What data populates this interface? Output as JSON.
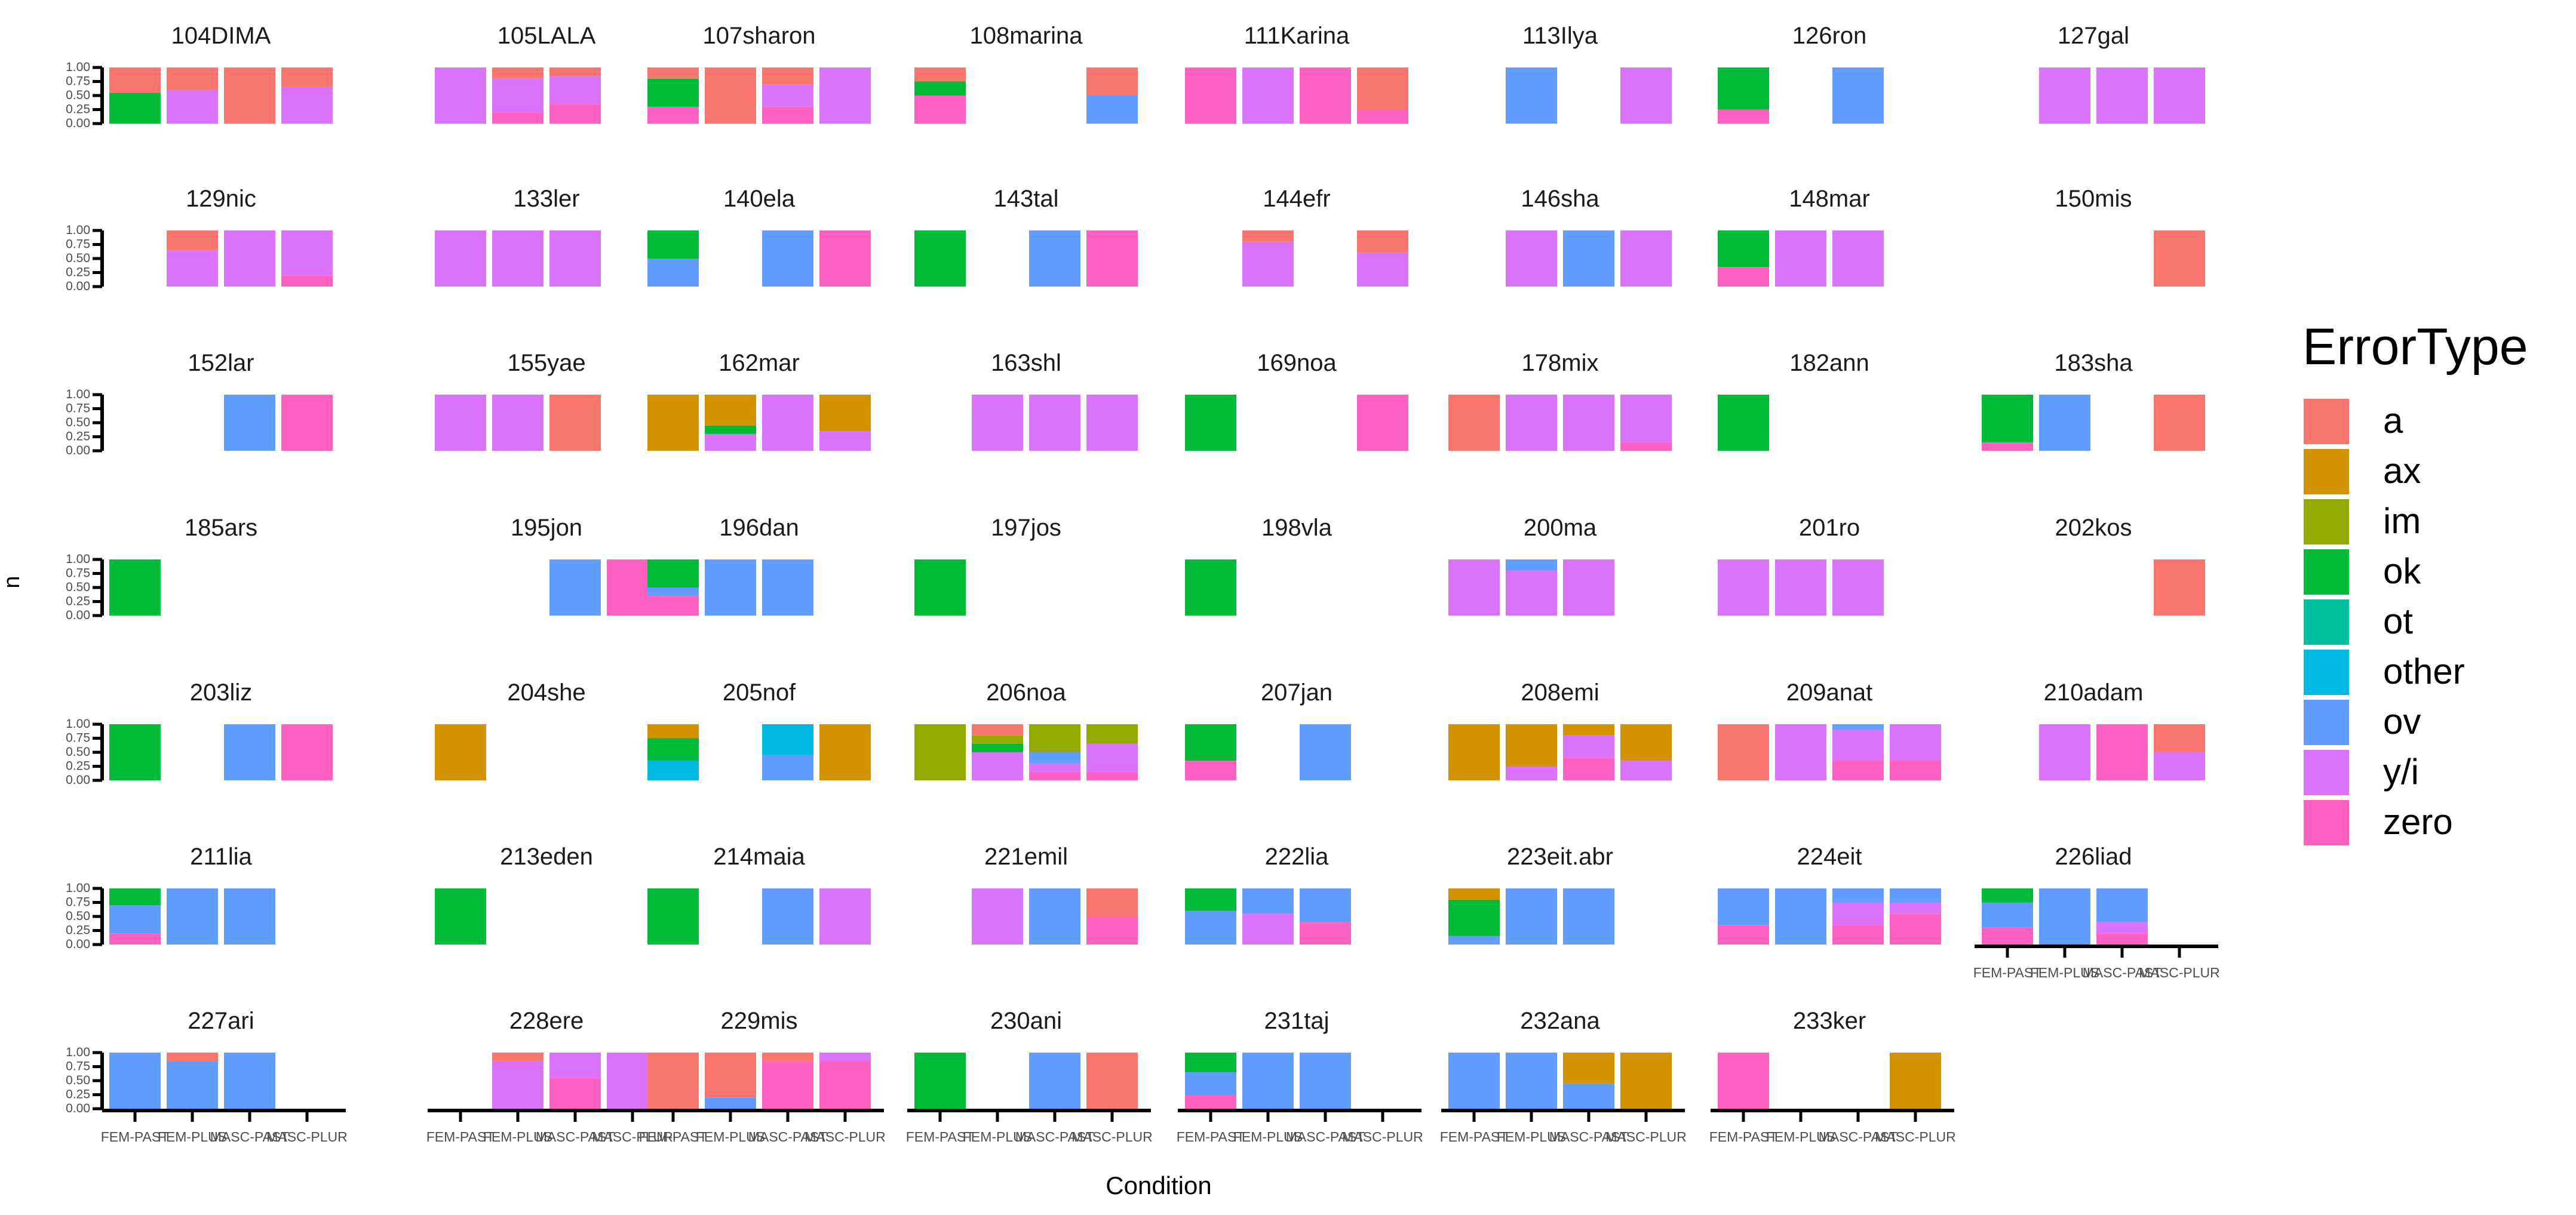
{
  "chart_data": {
    "type": "bar",
    "subtype": "faceted-stacked-proportion",
    "xlabel": "Condition",
    "ylabel": "n",
    "categories": [
      "FEM-PAST",
      "FEM-PLUS",
      "MASC-PAST",
      "MASC-PLUR"
    ],
    "x_tick_text": [
      "FEM-PAST",
      "FEM-PLUS",
      "MASC-PAST",
      "MASC-PLUR"
    ],
    "y_ticks": [
      "0.00",
      "0.25",
      "0.50",
      "0.75",
      "1.00"
    ],
    "ylim": [
      0,
      1
    ],
    "legend": {
      "title": "ErrorType",
      "entries": [
        "a",
        "ax",
        "im",
        "ok",
        "ot",
        "other",
        "ov",
        "y/i",
        "zero"
      ]
    },
    "colors": {
      "a": "#F8766D",
      "ax": "#D39200",
      "im": "#93AA00",
      "ok": "#00BA38",
      "ot": "#00C19F",
      "other": "#00B9E3",
      "ov": "#619CFF",
      "y/i": "#DB72FB",
      "zero": "#FF61C3"
    },
    "facets": [
      {
        "name": "104DIMA",
        "bars": [
          {
            "zero": 0,
            "ok": 0.55,
            "a": 0.45
          },
          {
            "y/i": 0.6,
            "a": 0.4
          },
          {
            "a": 1
          },
          {
            "y/i": 0.65,
            "a": 0.35
          }
        ]
      },
      {
        "name": "105LALA",
        "bars": [
          {
            "y/i": 1
          },
          {
            "zero": 0.2,
            "y/i": 0.6,
            "a": 0.2
          },
          {
            "zero": 0.35,
            "y/i": 0.5,
            "a": 0.15
          },
          null
        ]
      },
      {
        "name": "107sharon",
        "bars": [
          {
            "zero": 0.3,
            "ok": 0.5,
            "a": 0.2
          },
          {
            "a": 1
          },
          {
            "zero": 0.3,
            "y/i": 0.4,
            "a": 0.3
          },
          {
            "y/i": 1
          }
        ]
      },
      {
        "name": "108marina",
        "bars": [
          {
            "zero": 0.5,
            "ok": 0.25,
            "a": 0.25
          },
          null,
          null,
          {
            "ov": 0.5,
            "a": 0.5
          }
        ]
      },
      {
        "name": "111Karina",
        "bars": [
          {
            "zero": 1
          },
          {
            "y/i": 1
          },
          {
            "zero": 1
          },
          {
            "zero": 0.25,
            "a": 0.75
          }
        ]
      },
      {
        "name": "113Ilya",
        "bars": [
          null,
          {
            "ov": 1
          },
          null,
          {
            "y/i": 1
          }
        ]
      },
      {
        "name": "126ron",
        "bars": [
          {
            "zero": 0.25,
            "ok": 0.75
          },
          null,
          {
            "ov": 1
          },
          null
        ]
      },
      {
        "name": "127gal",
        "bars": [
          null,
          {
            "y/i": 1
          },
          {
            "y/i": 1
          },
          {
            "y/i": 1
          }
        ]
      },
      {
        "name": "129nic",
        "bars": [
          null,
          {
            "y/i": 0.65,
            "a": 0.35
          },
          {
            "y/i": 1
          },
          {
            "zero": 0.2,
            "y/i": 0.8
          }
        ]
      },
      {
        "name": "133ler",
        "bars": [
          {
            "y/i": 1
          },
          {
            "y/i": 1
          },
          {
            "y/i": 1
          },
          null
        ]
      },
      {
        "name": "140ela",
        "bars": [
          {
            "ov": 0.5,
            "ok": 0.5
          },
          null,
          {
            "ov": 1
          },
          {
            "zero": 1
          }
        ]
      },
      {
        "name": "143tal",
        "bars": [
          {
            "ok": 1
          },
          null,
          {
            "ov": 1
          },
          {
            "zero": 1
          }
        ]
      },
      {
        "name": "144efr",
        "bars": [
          null,
          {
            "y/i": 0.8,
            "a": 0.2
          },
          null,
          {
            "y/i": 0.6,
            "a": 0.4
          }
        ]
      },
      {
        "name": "146sha",
        "bars": [
          null,
          {
            "y/i": 1
          },
          {
            "ov": 1
          },
          {
            "y/i": 1
          }
        ]
      },
      {
        "name": "148mar",
        "bars": [
          {
            "zero": 0.35,
            "ok": 0.65
          },
          {
            "y/i": 1
          },
          {
            "y/i": 1
          },
          null
        ]
      },
      {
        "name": "150mis",
        "bars": [
          null,
          null,
          null,
          {
            "a": 1
          }
        ]
      },
      {
        "name": "152lar",
        "bars": [
          null,
          null,
          {
            "ov": 1
          },
          {
            "zero": 1
          }
        ]
      },
      {
        "name": "155yae",
        "bars": [
          {
            "y/i": 1
          },
          {
            "y/i": 1
          },
          {
            "a": 1
          },
          null
        ]
      },
      {
        "name": "162mar",
        "bars": [
          {
            "ax": 1
          },
          {
            "y/i": 0.3,
            "ok": 0.15,
            "ax": 0.55
          },
          {
            "y/i": 1
          },
          {
            "y/i": 0.35,
            "ax": 0.65
          }
        ]
      },
      {
        "name": "163shl",
        "bars": [
          null,
          {
            "y/i": 1
          },
          {
            "y/i": 1
          },
          {
            "y/i": 1
          }
        ]
      },
      {
        "name": "169noa",
        "bars": [
          {
            "ok": 1
          },
          null,
          null,
          {
            "zero": 1
          }
        ]
      },
      {
        "name": "178mix",
        "bars": [
          {
            "a": 1
          },
          {
            "y/i": 1
          },
          {
            "y/i": 1
          },
          {
            "zero": 0.15,
            "y/i": 0.85
          }
        ]
      },
      {
        "name": "182ann",
        "bars": [
          {
            "ok": 1
          },
          null,
          null,
          null
        ]
      },
      {
        "name": "183sha",
        "bars": [
          {
            "zero": 0.15,
            "ok": 0.85
          },
          {
            "ov": 1
          },
          null,
          {
            "a": 1
          }
        ]
      },
      {
        "name": "185ars",
        "bars": [
          {
            "ok": 1
          },
          null,
          null,
          null
        ]
      },
      {
        "name": "195jon",
        "bars": [
          null,
          null,
          {
            "ov": 1
          },
          {
            "zero": 1
          }
        ]
      },
      {
        "name": "196dan",
        "bars": [
          {
            "zero": 0.35,
            "ov": 0.15,
            "ok": 0.5
          },
          {
            "ov": 1
          },
          {
            "ov": 1
          },
          null
        ]
      },
      {
        "name": "197jos",
        "bars": [
          {
            "ok": 1
          },
          null,
          null,
          null
        ]
      },
      {
        "name": "198vla",
        "bars": [
          {
            "ok": 1
          },
          null,
          null,
          null
        ]
      },
      {
        "name": "200ma",
        "bars": [
          {
            "y/i": 1
          },
          {
            "y/i": 0.8,
            "ov": 0.2
          },
          {
            "y/i": 1
          },
          null
        ]
      },
      {
        "name": "201ro",
        "bars": [
          {
            "y/i": 1
          },
          {
            "y/i": 1
          },
          {
            "y/i": 1
          },
          null
        ]
      },
      {
        "name": "202kos",
        "bars": [
          null,
          null,
          null,
          {
            "a": 1
          }
        ]
      },
      {
        "name": "203liz",
        "bars": [
          {
            "ok": 1
          },
          null,
          {
            "ov": 1
          },
          {
            "zero": 1
          }
        ]
      },
      {
        "name": "204she",
        "bars": [
          {
            "ax": 1
          },
          null,
          null,
          null
        ]
      },
      {
        "name": "205nof",
        "bars": [
          {
            "other": 0.35,
            "ok": 0.4,
            "ax": 0.25
          },
          null,
          {
            "ov": 0.45,
            "other": 0.55
          },
          {
            "ax": 1
          }
        ]
      },
      {
        "name": "206noa",
        "bars": [
          {
            "im": 1
          },
          {
            "y/i": 0.5,
            "ok": 0.15,
            "im": 0.15,
            "a": 0.2
          },
          {
            "zero": 0.15,
            "y/i": 0.15,
            "ov": 0.2,
            "im": 0.5
          },
          {
            "zero": 0.15,
            "y/i": 0.5,
            "im": 0.35
          }
        ]
      },
      {
        "name": "207jan",
        "bars": [
          {
            "zero": 0.35,
            "ok": 0.65
          },
          null,
          {
            "ov": 1
          },
          null
        ]
      },
      {
        "name": "208emi",
        "bars": [
          {
            "ax": 1
          },
          {
            "y/i": 0.25,
            "ax": 0.75
          },
          {
            "zero": 0.4,
            "y/i": 0.4,
            "ax": 0.2
          },
          {
            "y/i": 0.35,
            "ax": 0.65
          }
        ]
      },
      {
        "name": "209anat",
        "bars": [
          {
            "a": 1
          },
          {
            "y/i": 1
          },
          {
            "zero": 0.35,
            "y/i": 0.55,
            "ov": 0.1
          },
          {
            "zero": 0.35,
            "y/i": 0.65
          }
        ]
      },
      {
        "name": "210adam",
        "bars": [
          null,
          {
            "y/i": 1
          },
          {
            "zero": 1
          },
          {
            "y/i": 0.5,
            "a": 0.5
          }
        ]
      },
      {
        "name": "211lia",
        "bars": [
          {
            "zero": 0.2,
            "ov": 0.5,
            "ok": 0.3
          },
          {
            "ov": 1
          },
          {
            "ov": 1
          },
          null
        ]
      },
      {
        "name": "213eden",
        "bars": [
          {
            "ok": 1
          },
          null,
          null,
          null
        ]
      },
      {
        "name": "214maia",
        "bars": [
          {
            "ok": 1
          },
          null,
          {
            "ov": 1
          },
          {
            "y/i": 1
          }
        ]
      },
      {
        "name": "221emil",
        "bars": [
          null,
          {
            "y/i": 1
          },
          {
            "ov": 1
          },
          {
            "zero": 0.5,
            "a": 0.5
          }
        ]
      },
      {
        "name": "222lia",
        "bars": [
          {
            "ov": 0.6,
            "ok": 0.4
          },
          {
            "y/i": 0.55,
            "ov": 0.45
          },
          {
            "zero": 0.4,
            "ov": 0.6
          },
          null
        ]
      },
      {
        "name": "223eit.abr",
        "bars": [
          {
            "ov": 0.15,
            "ok": 0.65,
            "ax": 0.2
          },
          {
            "ov": 1
          },
          {
            "ov": 1
          },
          null
        ]
      },
      {
        "name": "224eit",
        "bars": [
          {
            "zero": 0.35,
            "ov": 0.65
          },
          {
            "ov": 1
          },
          {
            "zero": 0.35,
            "y/i": 0.4,
            "ov": 0.25
          },
          {
            "zero": 0.55,
            "y/i": 0.2,
            "ov": 0.25
          }
        ]
      },
      {
        "name": "226liad",
        "bars": [
          {
            "zero": 0.3,
            "ov": 0.45,
            "ok": 0.25
          },
          {
            "ov": 1
          },
          {
            "zero": 0.2,
            "y/i": 0.2,
            "ov": 0.6
          },
          null
        ]
      },
      {
        "name": "227ari",
        "bars": [
          {
            "ov": 1
          },
          {
            "ov": 0.85,
            "a": 0.15
          },
          {
            "ov": 1
          },
          null
        ]
      },
      {
        "name": "228ere",
        "bars": [
          null,
          {
            "y/i": 0.85,
            "a": 0.15
          },
          {
            "zero": 0.55,
            "y/i": 0.45
          },
          {
            "y/i": 1
          }
        ]
      },
      {
        "name": "229mis",
        "bars": [
          {
            "a": 1
          },
          {
            "ov": 0.2,
            "a": 0.8
          },
          {
            "zero": 0.85,
            "a": 0.15
          },
          {
            "zero": 0.85,
            "y/i": 0.15
          }
        ]
      },
      {
        "name": "230ani",
        "bars": [
          {
            "ok": 1
          },
          null,
          {
            "ov": 1
          },
          {
            "a": 1
          }
        ]
      },
      {
        "name": "231taj",
        "bars": [
          {
            "zero": 0.25,
            "ov": 0.4,
            "ok": 0.35
          },
          {
            "ov": 1
          },
          {
            "ov": 1
          },
          null
        ]
      },
      {
        "name": "232ana",
        "bars": [
          {
            "ov": 1
          },
          {
            "ov": 1
          },
          {
            "ov": 0.45,
            "ax": 0.55
          },
          {
            "ax": 1
          }
        ]
      },
      {
        "name": "233ker",
        "bars": [
          {
            "zero": 1
          },
          null,
          null,
          {
            "ax": 1
          }
        ]
      }
    ]
  }
}
